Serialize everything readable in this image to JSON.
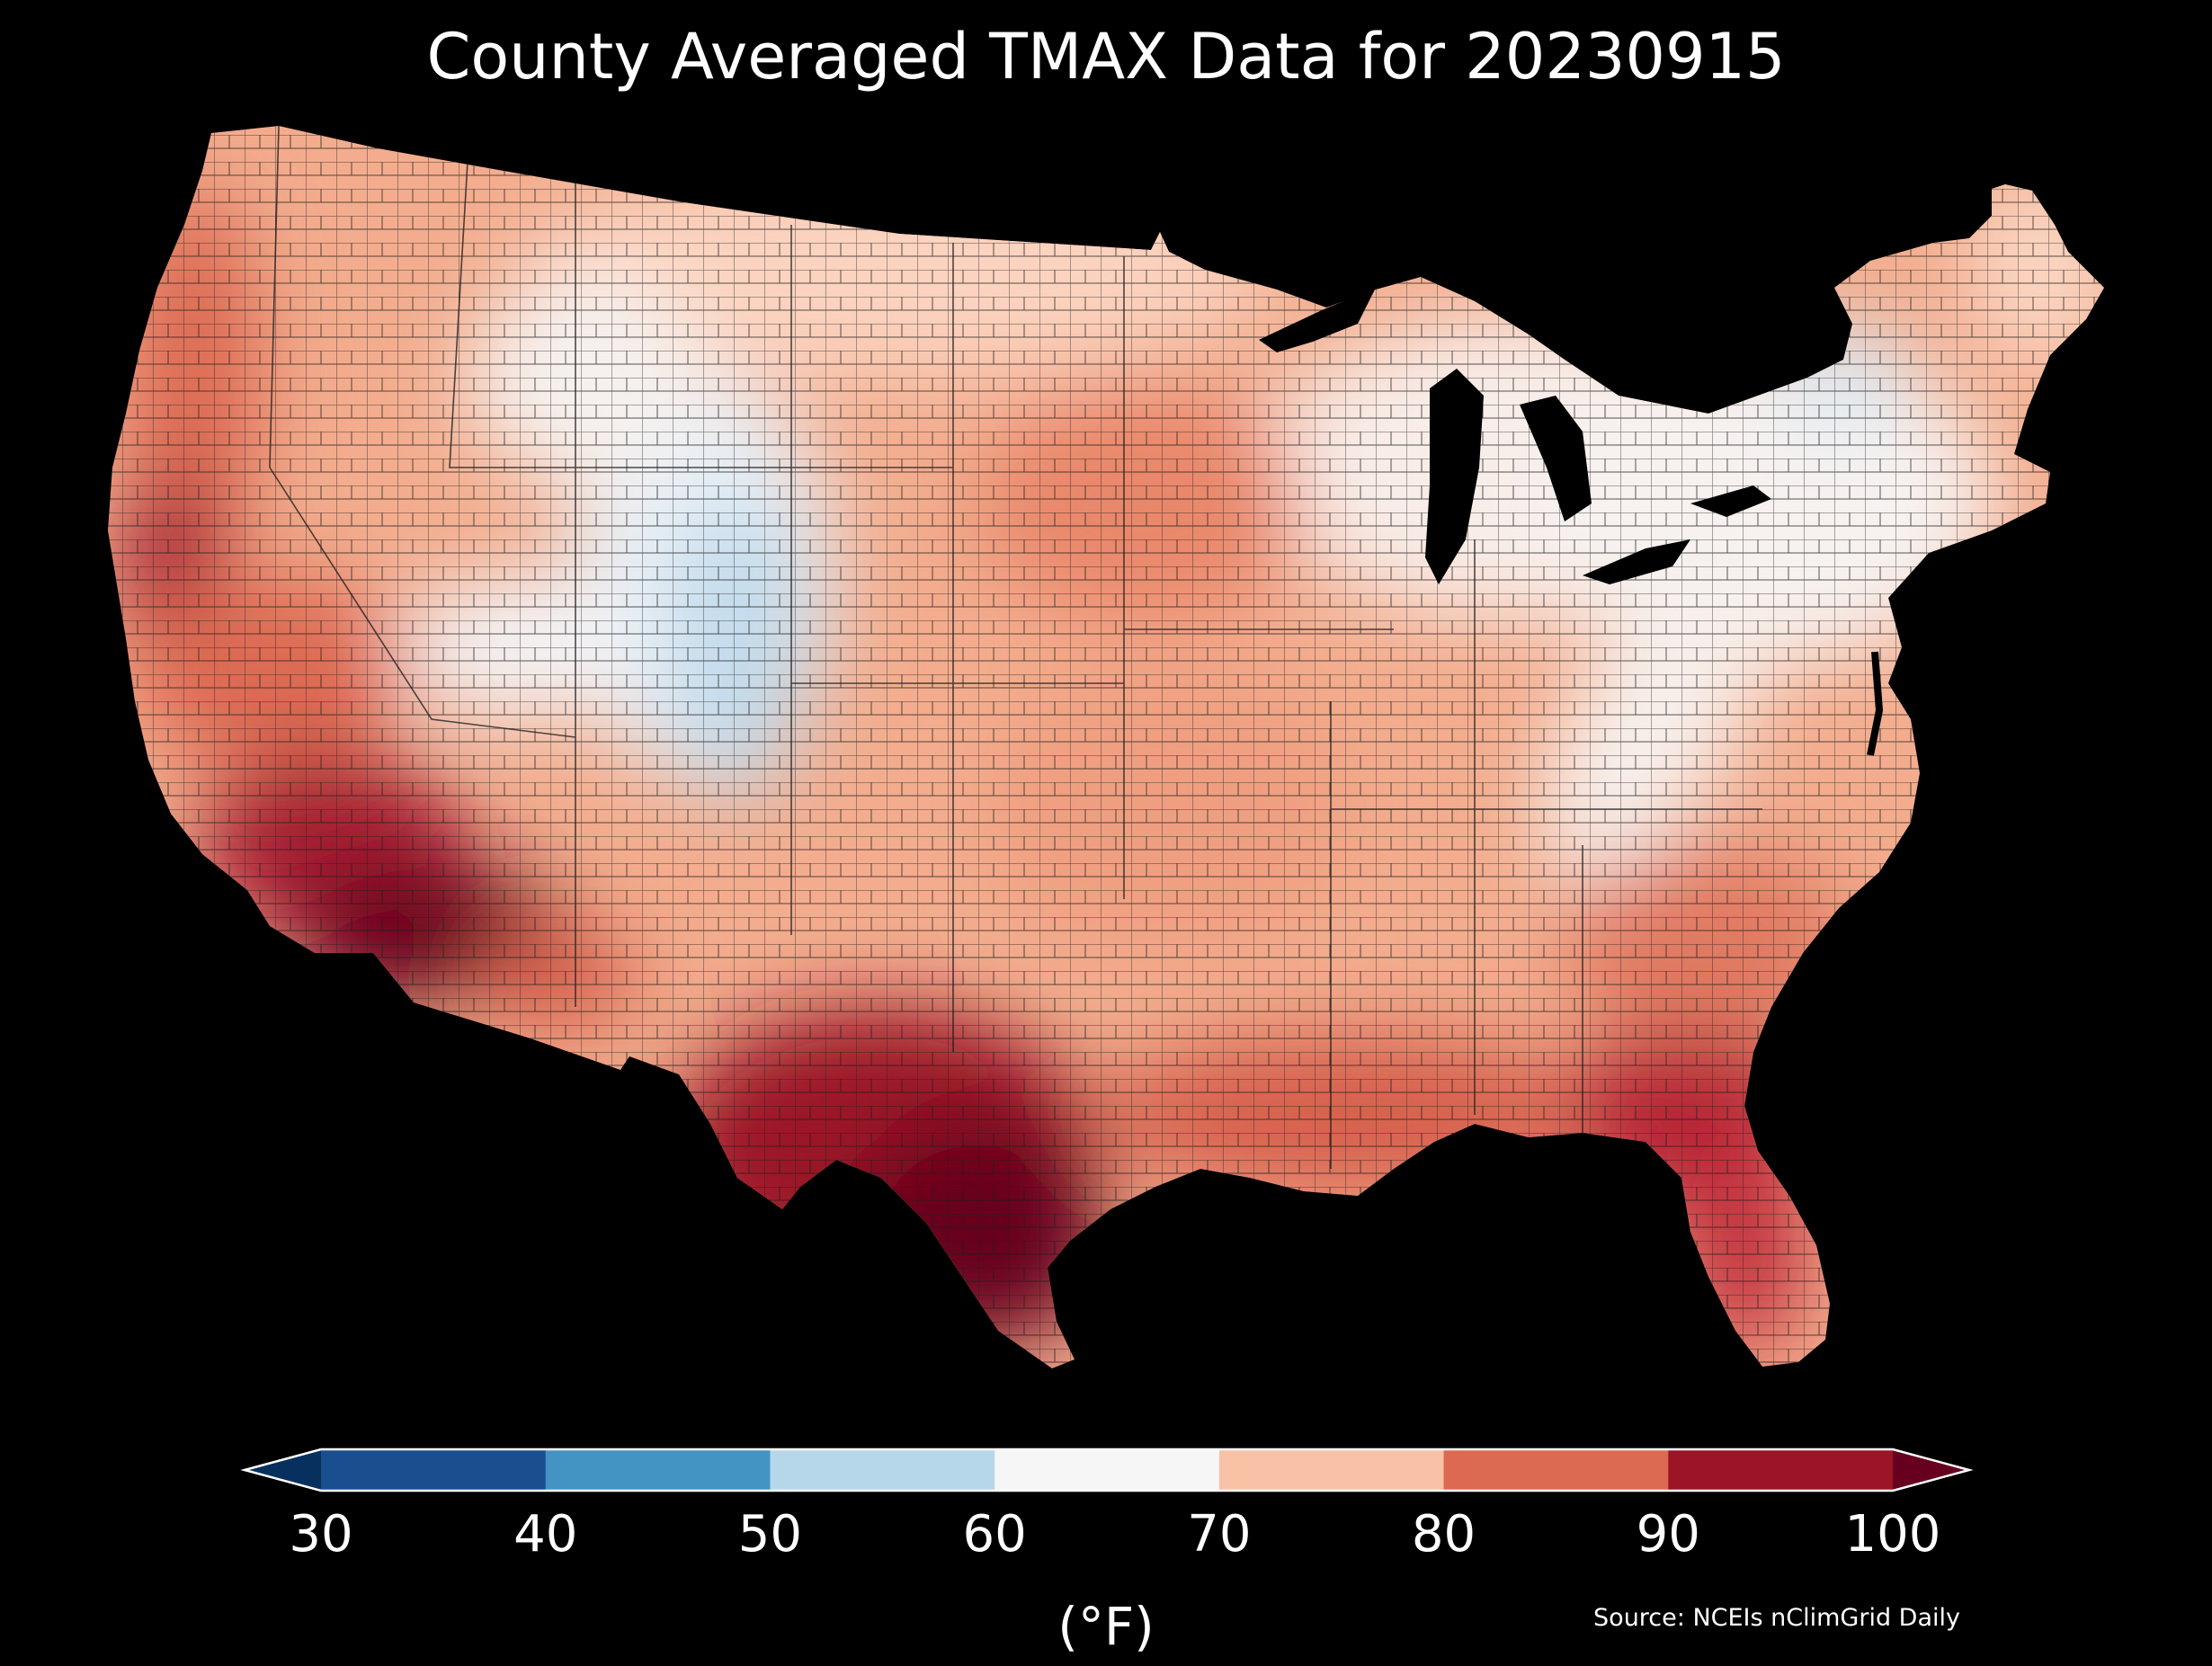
{
  "title": "County Averaged TMAX Data for 20230915",
  "colorbar": {
    "ticks": [
      "30",
      "40",
      "50",
      "60",
      "70",
      "80",
      "90",
      "100"
    ],
    "units": "(°F)",
    "colors": [
      "#1a4f8f",
      "#4393c3",
      "#b6d6ea",
      "#f6f6f6",
      "#f9c2a6",
      "#dc6a53",
      "#9b1526"
    ],
    "under_color": "#07305e",
    "over_color": "#67001f"
  },
  "source": "Source: NCEIs nClimGrid Daily",
  "map_colors": {
    "hot_extreme": "#67001f",
    "hot": "#a51c30",
    "warm": "#d6604d",
    "mild": "#f4a582",
    "pale": "#fbd3bf",
    "neutral": "#f5f0ee",
    "cool": "#dbe9f3",
    "cooler": "#b9d6ea",
    "water": "#000000",
    "border": "#2a2a2a"
  }
}
